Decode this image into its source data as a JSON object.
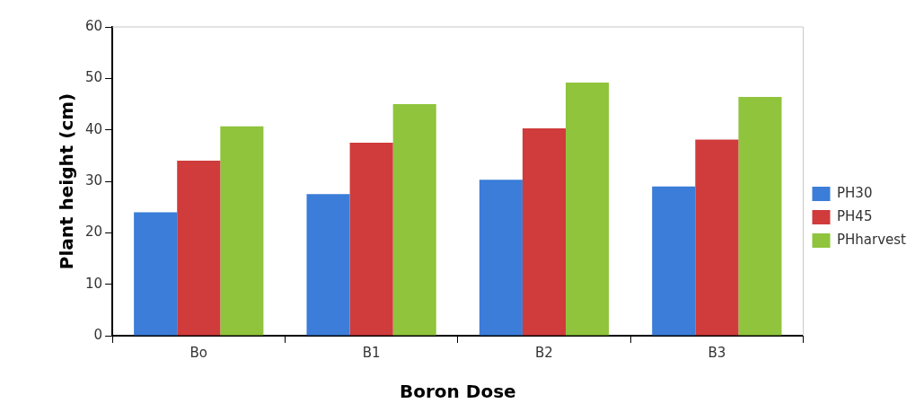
{
  "chart_data": {
    "type": "bar",
    "xlabel": "Boron Dose",
    "ylabel": "Plant height (cm)",
    "categories": [
      "Bo",
      "B1",
      "B2",
      "B3"
    ],
    "series": [
      {
        "name": "PH30",
        "color": "#3b7dd8",
        "values": [
          24.0,
          27.5,
          30.3,
          29.0
        ]
      },
      {
        "name": "PH45",
        "color": "#d03b3b",
        "values": [
          34.0,
          37.5,
          40.3,
          38.1
        ]
      },
      {
        "name": "PHharvest",
        "color": "#8fc43c",
        "values": [
          40.7,
          45.0,
          49.2,
          46.4
        ]
      }
    ],
    "ylim": [
      0,
      60
    ],
    "yticks": [
      0,
      10,
      20,
      30,
      40,
      50,
      60
    ],
    "grid": false,
    "legend": "right"
  }
}
